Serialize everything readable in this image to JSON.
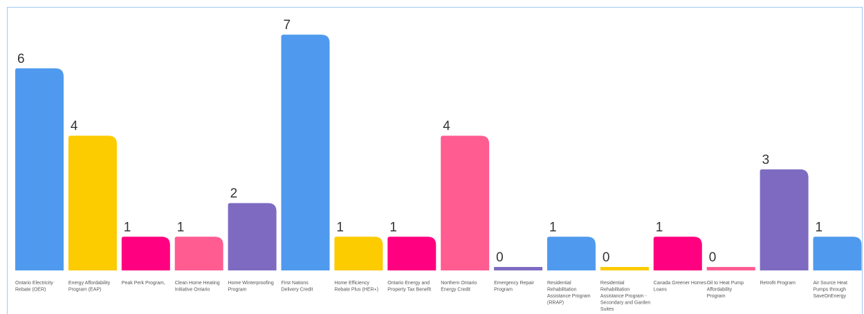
{
  "chart_data": {
    "type": "bar",
    "categories": [
      "Ontario Electricity Rebate (OER)",
      "Energy Affordability Program (EAP)",
      "Peak Perk Program,",
      "Clean Home Heating Initiative Ontario",
      "Home Winterproofing Program",
      "First Nations Delivery Credit",
      "Home Efficiency Rebate Plus (HER+)",
      "Ontario Energy and Property Tax Benefit",
      "Northern Ontario Energy Credit",
      "Emergency Repair Program",
      "Residential Rehabilitation Assistance Program (RRAP)",
      "Residential Rehabilitation Assistance Program - Secondary and Garden Suites",
      "Canada Greener Homes Loans",
      "Oil to Heat Pump Affordability Program",
      "Retrofit Program",
      "Air Source Heat Pumps through SaveOnEnergy"
    ],
    "values": [
      6,
      4,
      1,
      1,
      2,
      7,
      1,
      1,
      4,
      0,
      1,
      0,
      1,
      0,
      3,
      1
    ],
    "colors": [
      "#4f9aee",
      "#fccb00",
      "#ff0080",
      "#ff5c92",
      "#7e6bc1",
      "#4f9aee",
      "#fccb00",
      "#ff0080",
      "#ff5c92",
      "#7e6bc1",
      "#4f9aee",
      "#fccb00",
      "#ff0080",
      "#ff5c92",
      "#7e6bc1",
      "#4f9aee"
    ],
    "title": "",
    "xlabel": "",
    "ylabel": "",
    "ylim": [
      0,
      7
    ],
    "grid": false,
    "legend": "none"
  }
}
